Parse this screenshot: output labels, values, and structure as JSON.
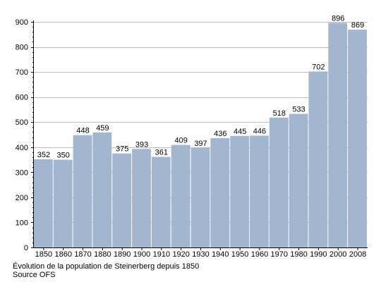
{
  "colors": {
    "bar": "#a3b6cf",
    "grid": "#bdbdbd",
    "axis": "#000000",
    "text": "#000000"
  },
  "caption": {
    "line1": "Évolution de la population de Steinerberg depuis 1850",
    "line2": "Source OFS"
  },
  "chart_data": {
    "type": "bar",
    "title": "",
    "xlabel": "",
    "ylabel": "",
    "categories": [
      "1850",
      "1860",
      "1870",
      "1880",
      "1890",
      "1900",
      "1910",
      "1920",
      "1930",
      "1940",
      "1950",
      "1960",
      "1970",
      "1980",
      "1990",
      "2000",
      "2008"
    ],
    "values": [
      352,
      350,
      448,
      459,
      375,
      393,
      361,
      409,
      397,
      436,
      445,
      446,
      518,
      533,
      702,
      896,
      869
    ],
    "data_labels": [
      "352",
      "350",
      "448",
      "459",
      "375",
      "393",
      "361",
      "409",
      "397",
      "436",
      "445",
      "446",
      "518",
      "533",
      "702",
      "896",
      "869"
    ],
    "ylim": [
      0,
      900
    ],
    "yticks": [
      0,
      100,
      200,
      300,
      400,
      500,
      600,
      700,
      800,
      900
    ],
    "grid": true,
    "legend": "none"
  }
}
